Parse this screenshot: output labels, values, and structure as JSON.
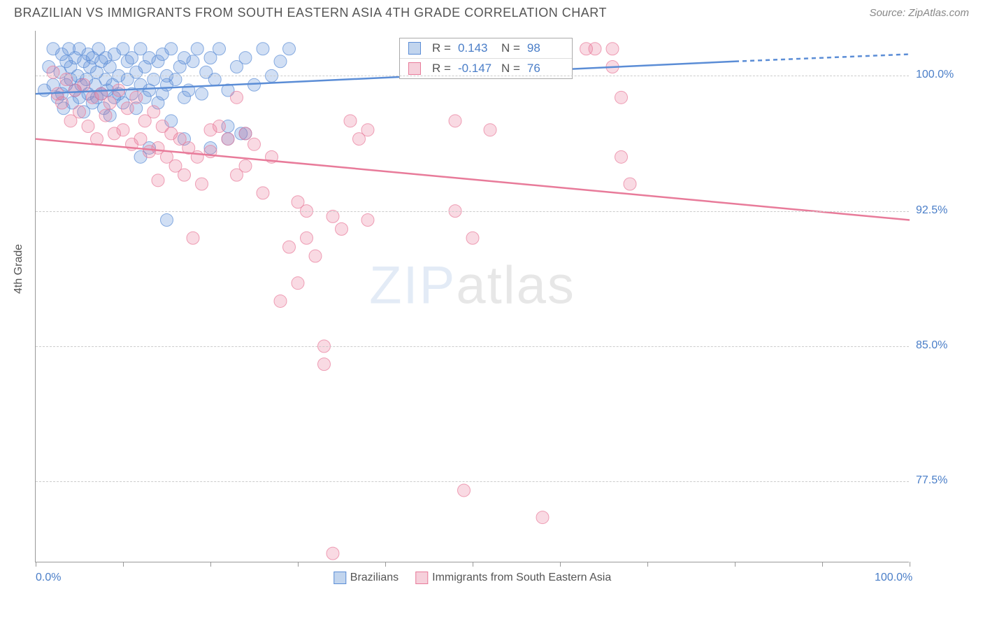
{
  "title": "BRAZILIAN VS IMMIGRANTS FROM SOUTH EASTERN ASIA 4TH GRADE CORRELATION CHART",
  "source": "Source: ZipAtlas.com",
  "y_label": "4th Grade",
  "watermark_main": "ZIP",
  "watermark_sub": "atlas",
  "chart": {
    "type": "scatter",
    "xlim": [
      0,
      100
    ],
    "ylim": [
      73,
      102.5
    ],
    "x_ticks": [
      0,
      10,
      20,
      30,
      40,
      50,
      60,
      70,
      80,
      90,
      100
    ],
    "x_tick_labels": {
      "0": "0.0%",
      "100": "100.0%"
    },
    "y_gridlines": [
      77.5,
      85.0,
      92.5,
      100.0
    ],
    "y_tick_labels": {
      "77.5": "77.5%",
      "85.0": "85.0%",
      "92.5": "92.5%",
      "100.0": "100.0%"
    },
    "background_color": "#ffffff",
    "grid_color": "#cccccc",
    "axis_color": "#999999",
    "marker_radius": 9,
    "marker_fill_opacity": 0.28,
    "marker_stroke_opacity": 0.7,
    "marker_stroke_width": 1,
    "series": [
      {
        "name": "Brazilians",
        "color": "#5b8dd6",
        "R": "0.143",
        "N": "98",
        "trend": {
          "x1": 0,
          "y1": 99.0,
          "x2": 80,
          "y2": 100.8,
          "dash_x2": 100,
          "dash_y2": 101.2
        },
        "trend_width": 2.5,
        "points": [
          [
            1,
            99.2
          ],
          [
            1.5,
            100.5
          ],
          [
            2,
            99.5
          ],
          [
            2,
            101.5
          ],
          [
            2.5,
            98.8
          ],
          [
            2.8,
            100.2
          ],
          [
            3,
            101.2
          ],
          [
            3,
            99.0
          ],
          [
            3.2,
            98.2
          ],
          [
            3.5,
            100.8
          ],
          [
            3.5,
            99.5
          ],
          [
            3.8,
            101.5
          ],
          [
            4,
            99.8
          ],
          [
            4,
            100.5
          ],
          [
            4.2,
            98.5
          ],
          [
            4.5,
            101.0
          ],
          [
            4.5,
            99.2
          ],
          [
            4.8,
            100.0
          ],
          [
            5,
            98.8
          ],
          [
            5,
            101.5
          ],
          [
            5.2,
            99.5
          ],
          [
            5.5,
            100.8
          ],
          [
            5.5,
            98.0
          ],
          [
            5.8,
            99.8
          ],
          [
            6,
            101.2
          ],
          [
            6,
            99.0
          ],
          [
            6.2,
            100.5
          ],
          [
            6.5,
            98.5
          ],
          [
            6.5,
            101.0
          ],
          [
            6.8,
            99.5
          ],
          [
            7,
            100.2
          ],
          [
            7,
            98.8
          ],
          [
            7.2,
            101.5
          ],
          [
            7.5,
            99.0
          ],
          [
            7.5,
            100.8
          ],
          [
            7.8,
            98.2
          ],
          [
            8,
            99.8
          ],
          [
            8,
            101.0
          ],
          [
            8.2,
            99.2
          ],
          [
            8.5,
            100.5
          ],
          [
            8.5,
            97.8
          ],
          [
            8.8,
            99.5
          ],
          [
            9,
            101.2
          ],
          [
            9,
            98.8
          ],
          [
            9.5,
            100.0
          ],
          [
            9.5,
            99.0
          ],
          [
            10,
            101.5
          ],
          [
            10,
            98.5
          ],
          [
            10.5,
            99.8
          ],
          [
            10.5,
            100.8
          ],
          [
            11,
            99.0
          ],
          [
            11,
            101.0
          ],
          [
            11.5,
            98.2
          ],
          [
            11.5,
            100.2
          ],
          [
            12,
            99.5
          ],
          [
            12,
            101.5
          ],
          [
            12.5,
            98.8
          ],
          [
            12.5,
            100.5
          ],
          [
            13,
            99.2
          ],
          [
            13,
            101.0
          ],
          [
            13.5,
            99.8
          ],
          [
            14,
            100.8
          ],
          [
            14,
            98.5
          ],
          [
            14.5,
            99.0
          ],
          [
            14.5,
            101.2
          ],
          [
            15,
            100.0
          ],
          [
            15,
            99.5
          ],
          [
            15.5,
            101.5
          ],
          [
            15.5,
            97.5
          ],
          [
            16,
            99.8
          ],
          [
            16.5,
            100.5
          ],
          [
            17,
            101.0
          ],
          [
            17,
            98.8
          ],
          [
            17.5,
            99.2
          ],
          [
            18,
            100.8
          ],
          [
            18.5,
            101.5
          ],
          [
            19,
            99.0
          ],
          [
            19.5,
            100.2
          ],
          [
            20,
            101.0
          ],
          [
            20.5,
            99.8
          ],
          [
            21,
            101.5
          ],
          [
            22,
            99.2
          ],
          [
            22,
            96.5
          ],
          [
            23,
            100.5
          ],
          [
            23.5,
            96.8
          ],
          [
            24,
            101.0
          ],
          [
            25,
            99.5
          ],
          [
            26,
            101.5
          ],
          [
            27,
            100.0
          ],
          [
            28,
            100.8
          ],
          [
            29,
            101.5
          ],
          [
            12,
            95.5
          ],
          [
            13,
            96.0
          ],
          [
            15,
            92.0
          ],
          [
            17,
            96.5
          ],
          [
            20,
            96.0
          ],
          [
            22,
            97.2
          ],
          [
            24,
            96.8
          ]
        ]
      },
      {
        "name": "Immigrants from South Eastern Asia",
        "color": "#e87b9a",
        "R": "-0.147",
        "N": "76",
        "trend": {
          "x1": 0,
          "y1": 96.5,
          "x2": 100,
          "y2": 92.0
        },
        "trend_width": 2.5,
        "points": [
          [
            2,
            100.2
          ],
          [
            2.5,
            99.0
          ],
          [
            3,
            98.5
          ],
          [
            3.5,
            99.8
          ],
          [
            4,
            97.5
          ],
          [
            4.5,
            99.2
          ],
          [
            5,
            98.0
          ],
          [
            5.5,
            99.5
          ],
          [
            6,
            97.2
          ],
          [
            6.5,
            98.8
          ],
          [
            7,
            96.5
          ],
          [
            7.5,
            99.0
          ],
          [
            8,
            97.8
          ],
          [
            8.5,
            98.5
          ],
          [
            9,
            96.8
          ],
          [
            9.5,
            99.2
          ],
          [
            10,
            97.0
          ],
          [
            10.5,
            98.2
          ],
          [
            11,
            96.2
          ],
          [
            11.5,
            98.8
          ],
          [
            12,
            96.5
          ],
          [
            12.5,
            97.5
          ],
          [
            13,
            95.8
          ],
          [
            13.5,
            98.0
          ],
          [
            14,
            96.0
          ],
          [
            14.5,
            97.2
          ],
          [
            15,
            95.5
          ],
          [
            15.5,
            96.8
          ],
          [
            16,
            95.0
          ],
          [
            16.5,
            96.5
          ],
          [
            17,
            94.5
          ],
          [
            17.5,
            96.0
          ],
          [
            18,
            91.0
          ],
          [
            18.5,
            95.5
          ],
          [
            19,
            94.0
          ],
          [
            20,
            95.8
          ],
          [
            21,
            97.2
          ],
          [
            22,
            96.5
          ],
          [
            23,
            94.5
          ],
          [
            24,
            95.0
          ],
          [
            25,
            96.2
          ],
          [
            26,
            93.5
          ],
          [
            27,
            95.5
          ],
          [
            28,
            87.5
          ],
          [
            29,
            90.5
          ],
          [
            30,
            93.0
          ],
          [
            31,
            92.5
          ],
          [
            31,
            91.0
          ],
          [
            32,
            90.0
          ],
          [
            33,
            85.0
          ],
          [
            34,
            92.2
          ],
          [
            35,
            91.5
          ],
          [
            36,
            97.5
          ],
          [
            37,
            96.5
          ],
          [
            38,
            97.0
          ],
          [
            38,
            92.0
          ],
          [
            30,
            88.5
          ],
          [
            33,
            84.0
          ],
          [
            48,
            92.5
          ],
          [
            49,
            77.0
          ],
          [
            50,
            91.0
          ],
          [
            52,
            97.0
          ],
          [
            58,
            75.5
          ],
          [
            63,
            101.5
          ],
          [
            64,
            101.5
          ],
          [
            66,
            100.5
          ],
          [
            66,
            101.5
          ],
          [
            67,
            98.8
          ],
          [
            67,
            95.5
          ],
          [
            68,
            94.0
          ],
          [
            23,
            98.8
          ],
          [
            48,
            97.5
          ],
          [
            34,
            73.5
          ],
          [
            24,
            96.8
          ],
          [
            20,
            97.0
          ],
          [
            14,
            94.2
          ]
        ]
      }
    ]
  },
  "legend": {
    "items": [
      {
        "label": "Brazilians",
        "color": "#5b8dd6",
        "fill": "#c2d5ee"
      },
      {
        "label": "Immigrants from South Eastern Asia",
        "color": "#e87b9a",
        "fill": "#f6d0db"
      }
    ]
  },
  "stats_box": {
    "rows": [
      {
        "swatch_color": "#5b8dd6",
        "swatch_fill": "#c2d5ee",
        "R_label": "R =",
        "R": "0.143",
        "N_label": "N =",
        "N": "98"
      },
      {
        "swatch_color": "#e87b9a",
        "swatch_fill": "#f6d0db",
        "R_label": "R =",
        "R": "-0.147",
        "N_label": "N =",
        "N": "76"
      }
    ]
  }
}
